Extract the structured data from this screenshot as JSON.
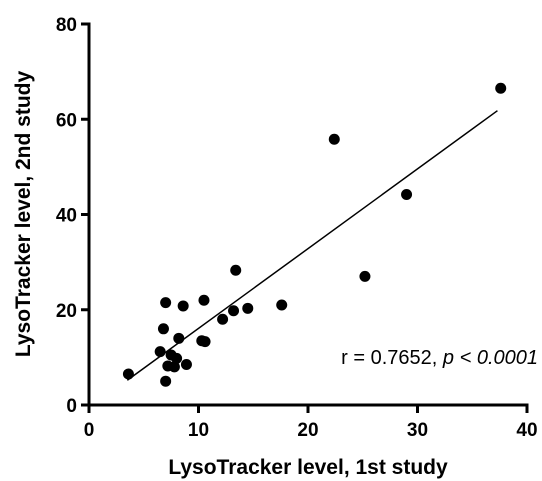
{
  "chart_data": {
    "type": "scatter",
    "xlabel": "LysoTracker level, 1st study",
    "ylabel": "LysoTracker level, 2nd study",
    "xlim": [
      0,
      40
    ],
    "ylim": [
      0,
      80
    ],
    "xticks": [
      "0",
      "10",
      "20",
      "30",
      "40"
    ],
    "yticks": [
      "0",
      "20",
      "40",
      "60",
      "80"
    ],
    "grid": false,
    "point_color": "#000000",
    "points": [
      {
        "x": 3.6,
        "y": 6.5
      },
      {
        "x": 6.5,
        "y": 11.2
      },
      {
        "x": 6.8,
        "y": 16.0
      },
      {
        "x": 7.0,
        "y": 21.5
      },
      {
        "x": 7.0,
        "y": 5.0
      },
      {
        "x": 7.2,
        "y": 8.2
      },
      {
        "x": 7.5,
        "y": 10.5
      },
      {
        "x": 7.8,
        "y": 8.0
      },
      {
        "x": 8.0,
        "y": 9.8
      },
      {
        "x": 8.2,
        "y": 14.0
      },
      {
        "x": 8.6,
        "y": 20.8
      },
      {
        "x": 8.9,
        "y": 8.5
      },
      {
        "x": 10.3,
        "y": 13.5
      },
      {
        "x": 10.5,
        "y": 22.0
      },
      {
        "x": 10.6,
        "y": 13.3
      },
      {
        "x": 12.2,
        "y": 18.0
      },
      {
        "x": 13.2,
        "y": 19.8
      },
      {
        "x": 13.4,
        "y": 28.3
      },
      {
        "x": 14.5,
        "y": 20.3
      },
      {
        "x": 17.6,
        "y": 21.0
      },
      {
        "x": 22.4,
        "y": 55.8
      },
      {
        "x": 25.2,
        "y": 27.0
      },
      {
        "x": 29.0,
        "y": 44.2
      },
      {
        "x": 37.6,
        "y": 66.5
      }
    ],
    "fit_line": {
      "x1": 3.5,
      "y1": 5.2,
      "x2": 37.3,
      "y2": 61.8
    },
    "annotation": {
      "prefix": "r = 0.7652, ",
      "p_label": "p",
      "suffix": " < 0.0001"
    }
  }
}
